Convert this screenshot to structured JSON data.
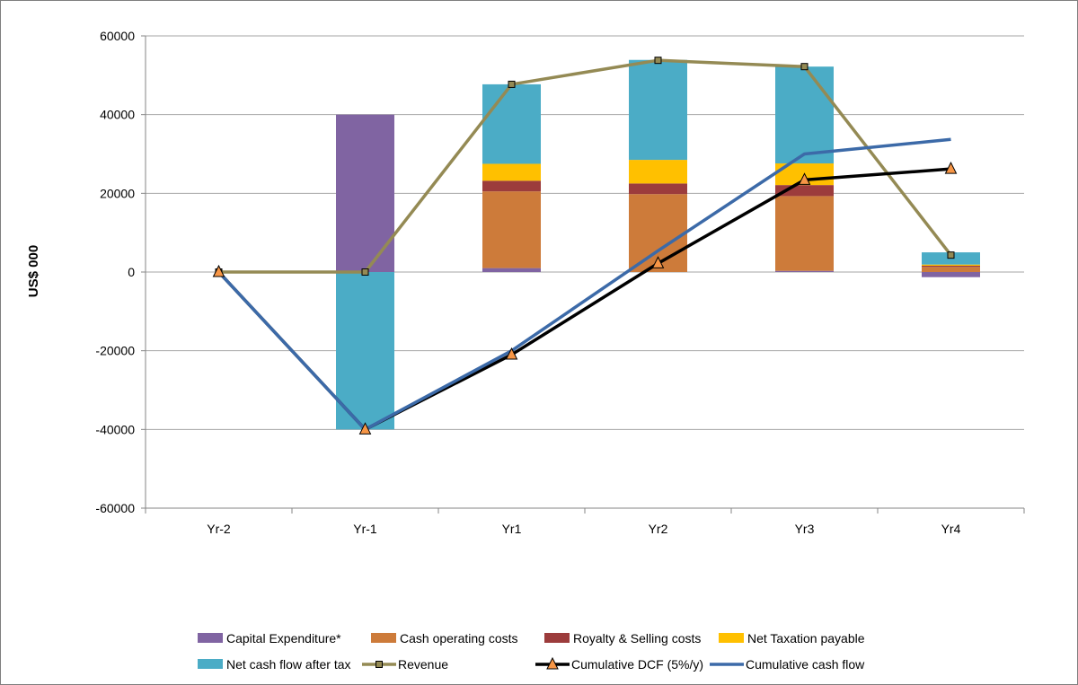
{
  "chart_data": {
    "type": "bar",
    "title": "",
    "xlabel": "",
    "ylabel": "US$ 000",
    "ylim": [
      -60000,
      60000
    ],
    "yticks": [
      60000,
      40000,
      20000,
      0,
      -20000,
      -40000,
      -60000
    ],
    "ytick_labels": [
      "60000",
      "40000",
      "20000",
      "0",
      "-20000",
      "-40000",
      "-60000"
    ],
    "grid": true,
    "legend_position": "bottom",
    "categories": [
      "Yr-2",
      "Yr-1",
      "Yr1",
      "Yr2",
      "Yr3",
      "Yr4"
    ],
    "bar_series": [
      {
        "name": "Capital Expenditure*",
        "color": "#8064a2",
        "values": [
          0,
          40000,
          1000,
          0,
          300,
          -1300
        ]
      },
      {
        "name": "Cash operating costs",
        "color": "#cd7b3a",
        "values": [
          0,
          0,
          19500,
          19800,
          19000,
          1300
        ]
      },
      {
        "name": "Royalty & Selling costs",
        "color": "#9c3c3c",
        "values": [
          0,
          0,
          2700,
          2700,
          2800,
          300
        ]
      },
      {
        "name": "Net Taxation payable",
        "color": "#ffc000",
        "values": [
          0,
          0,
          4300,
          6000,
          5500,
          300
        ]
      },
      {
        "name": "Net cash flow after tax",
        "color": "#4bacc6",
        "values": [
          0,
          -40000,
          20200,
          25400,
          24600,
          3100
        ]
      }
    ],
    "line_series": [
      {
        "name": "Revenue",
        "color": "#948a54",
        "marker": "square",
        "values": [
          0,
          0,
          47700,
          53800,
          52200,
          4300
        ]
      },
      {
        "name": "Cumulative DCF (5%/y)",
        "color": "#000000",
        "marker": "triangle",
        "values": [
          0,
          -40000,
          -21000,
          2200,
          23400,
          26200
        ]
      },
      {
        "name": "Cumulative cash flow",
        "color": "#3c6aa8",
        "marker": "none",
        "values": [
          0,
          -40000,
          -20000,
          5400,
          30000,
          33700
        ]
      }
    ]
  }
}
